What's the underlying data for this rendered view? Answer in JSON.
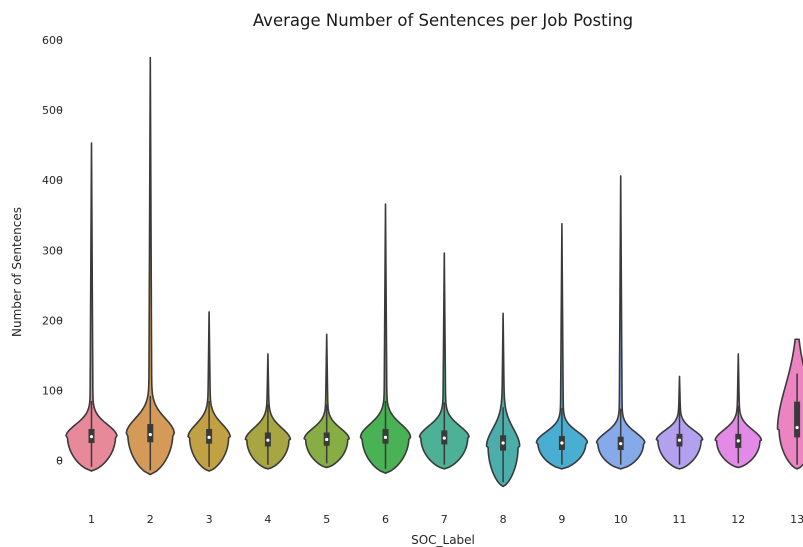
{
  "chart_data": {
    "type": "violin",
    "title": "Average Number of Sentences per Job Posting",
    "xlabel": "SOC_Label",
    "ylabel": "Number of Sentences",
    "ylim": [
      -50,
      620
    ],
    "yticks": [
      0,
      100,
      200,
      300,
      400,
      500,
      600
    ],
    "grid": false,
    "legend": "none",
    "categories": [
      "1",
      "2",
      "3",
      "4",
      "5",
      "6",
      "7",
      "8",
      "9",
      "10",
      "11",
      "12",
      "13"
    ],
    "series": [
      {
        "label": "1",
        "color": "#e8899a",
        "min": -15,
        "max": 453,
        "q1": 25,
        "median": 34,
        "q3": 45,
        "mode": 34,
        "mode_width": 0.8
      },
      {
        "label": "2",
        "color": "#d69a58",
        "min": -20,
        "max": 575,
        "q1": 26,
        "median": 37,
        "q3": 52,
        "mode": 38,
        "mode_width": 0.75
      },
      {
        "label": "3",
        "color": "#c2a044",
        "min": -15,
        "max": 212,
        "q1": 24,
        "median": 33,
        "q3": 45,
        "mode": 33,
        "mode_width": 0.65
      },
      {
        "label": "4",
        "color": "#a8a543",
        "min": -12,
        "max": 152,
        "q1": 20,
        "median": 29,
        "q3": 40,
        "mode": 29,
        "mode_width": 0.7
      },
      {
        "label": "5",
        "color": "#87ae45",
        "min": -10,
        "max": 180,
        "q1": 21,
        "median": 30,
        "q3": 40,
        "mode": 30,
        "mode_width": 0.7
      },
      {
        "label": "6",
        "color": "#49b255",
        "min": -18,
        "max": 366,
        "q1": 24,
        "median": 33,
        "q3": 45,
        "mode": 33,
        "mode_width": 0.78
      },
      {
        "label": "7",
        "color": "#4cb196",
        "min": -12,
        "max": 296,
        "q1": 23,
        "median": 32,
        "q3": 43,
        "mode": 32,
        "mode_width": 0.78
      },
      {
        "label": "8",
        "color": "#4caeab",
        "min": -37,
        "max": 210,
        "q1": 14,
        "median": 25,
        "q3": 36,
        "mode": 20,
        "mode_width": 0.5
      },
      {
        "label": "9",
        "color": "#4aaed3",
        "min": -12,
        "max": 338,
        "q1": 15,
        "median": 25,
        "q3": 35,
        "mode": 25,
        "mode_width": 0.8
      },
      {
        "label": "10",
        "color": "#86a9e9",
        "min": -12,
        "max": 406,
        "q1": 15,
        "median": 24,
        "q3": 34,
        "mode": 24,
        "mode_width": 0.76
      },
      {
        "label": "11",
        "color": "#b3a1ef",
        "min": -12,
        "max": 120,
        "q1": 20,
        "median": 29,
        "q3": 38,
        "mode": 29,
        "mode_width": 0.72
      },
      {
        "label": "12",
        "color": "#e28ae6",
        "min": -10,
        "max": 152,
        "q1": 18,
        "median": 28,
        "q3": 38,
        "mode": 28,
        "mode_width": 0.72
      },
      {
        "label": "13",
        "color": "#eb84c0",
        "min": -12,
        "max": 173,
        "q1": 33,
        "median": 47,
        "q3": 84,
        "mode": 45,
        "mode_width": 0.6
      }
    ]
  }
}
